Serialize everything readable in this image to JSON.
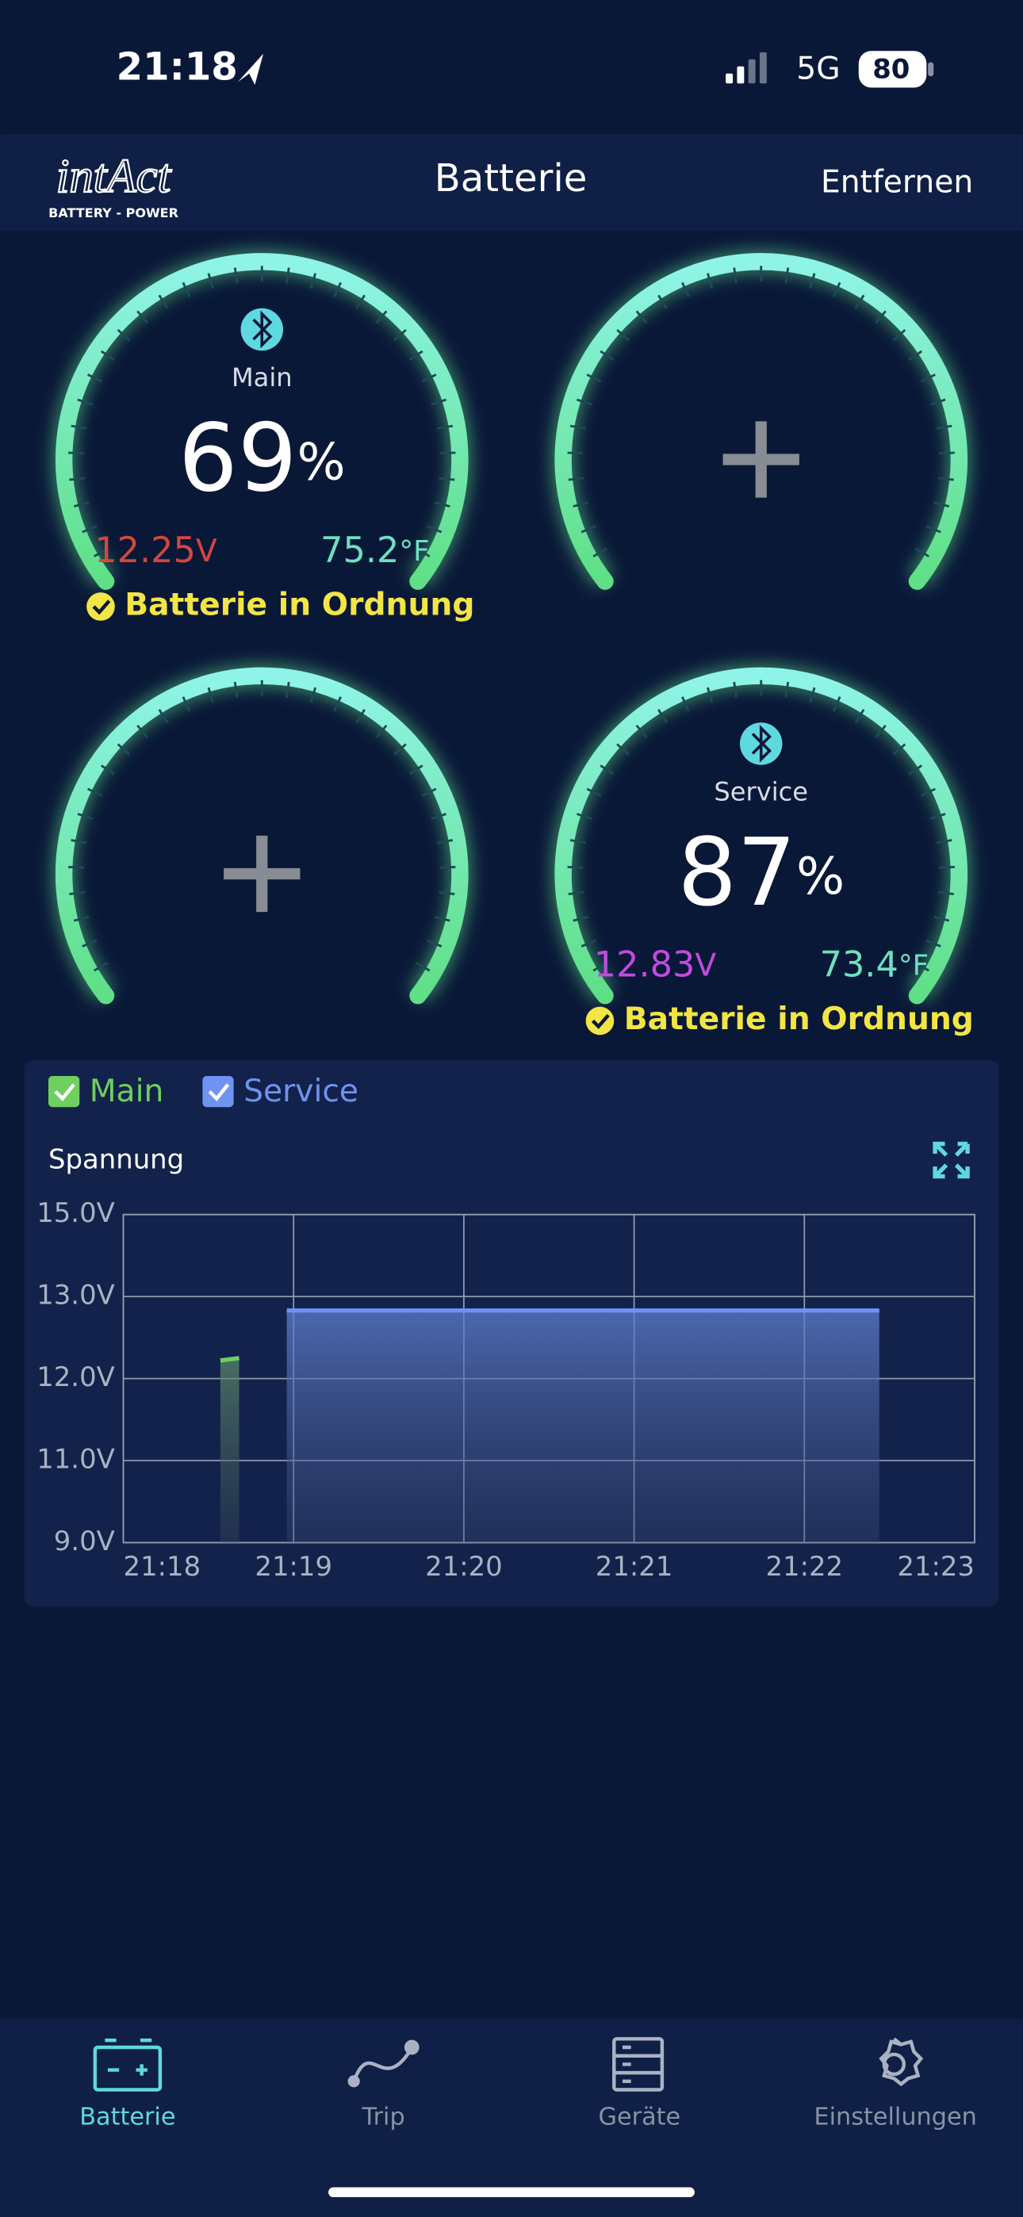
{
  "status_bar": {
    "time": "21:18",
    "network": "5G",
    "battery": "80"
  },
  "header": {
    "logo": "intAct",
    "logo_sub": "BATTERY - POWER",
    "title": "Batterie",
    "action": "Entfernen"
  },
  "gauges": [
    {
      "name": "Main",
      "percent": "69",
      "percent_unit": "%",
      "voltage": "12.25",
      "voltage_unit": "V",
      "temperature": "75.2",
      "temperature_unit": "°F",
      "status": "Batterie in Ordnung",
      "voltage_color": "#d4473d"
    },
    null,
    null,
    {
      "name": "Service",
      "percent": "87",
      "percent_unit": "%",
      "voltage": "12.83",
      "voltage_unit": "V",
      "temperature": "73.4",
      "temperature_unit": "°F",
      "status": "Batterie in Ordnung",
      "voltage_color": "#c24be0"
    }
  ],
  "chart_data": {
    "type": "line",
    "title": "Spannung",
    "xlim": [
      1278,
      1283
    ],
    "xticks": [
      {
        "value": 1278,
        "label": "21:18"
      },
      {
        "value": 1279,
        "label": "21:19"
      },
      {
        "value": 1280,
        "label": "21:20"
      },
      {
        "value": 1281,
        "label": "21:21"
      },
      {
        "value": 1282,
        "label": "21:22"
      },
      {
        "value": 1283,
        "label": "21:23"
      }
    ],
    "ylim": [
      9,
      15
    ],
    "yticks": [
      {
        "value": 9,
        "label": "9.0V"
      },
      {
        "value": 11,
        "label": "11.0V"
      },
      {
        "value": 12,
        "label": "12.0V"
      },
      {
        "value": 13,
        "label": "13.0V"
      },
      {
        "value": 15,
        "label": "15.0V"
      }
    ],
    "grid": true,
    "series": [
      {
        "name": "Main",
        "color": "#6fcf5f",
        "x": [
          1278.57,
          1278.68
        ],
        "values": [
          12.22,
          12.25
        ]
      },
      {
        "name": "Service",
        "color": "#6f93f0",
        "x": [
          1278.96,
          1279.5,
          1280,
          1280.5,
          1281,
          1281.5,
          1282,
          1282.44
        ],
        "values": [
          12.83,
          12.83,
          12.83,
          12.83,
          12.83,
          12.83,
          12.83,
          12.83
        ]
      }
    ]
  },
  "tabs": [
    "Batterie",
    "Trip",
    "Geräte",
    "Einstellungen"
  ]
}
